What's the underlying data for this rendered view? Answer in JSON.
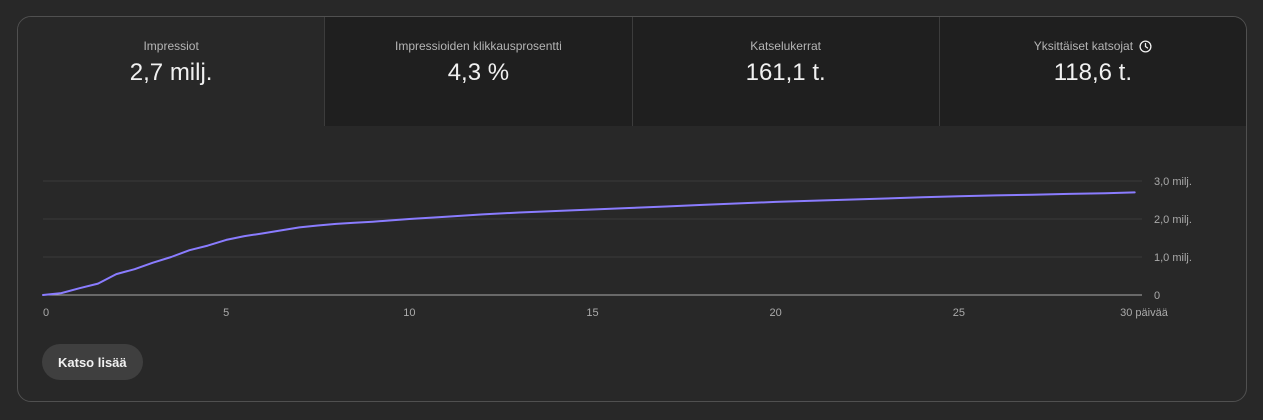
{
  "tabs": [
    {
      "label": "Impressiot",
      "value": "2,7 milj."
    },
    {
      "label": "Impressioiden klikkausprosentti",
      "value": "4,3 %"
    },
    {
      "label": "Katselukerrat",
      "value": "161,1 t."
    },
    {
      "label": "Yksittäiset katsojat",
      "value": "118,6 t."
    }
  ],
  "colors": {
    "line": "#8a7cff",
    "grid": "#3a3a3a",
    "baseline": "#aaaaaa"
  },
  "chart_data": {
    "type": "line",
    "title": "Impressiot",
    "xlabel": "",
    "ylabel": "",
    "xlim": [
      0,
      30
    ],
    "ylim": [
      0,
      3.0
    ],
    "x_ticks": [
      {
        "v": 0,
        "label": "0"
      },
      {
        "v": 5,
        "label": "5"
      },
      {
        "v": 10,
        "label": "10"
      },
      {
        "v": 15,
        "label": "15"
      },
      {
        "v": 20,
        "label": "20"
      },
      {
        "v": 25,
        "label": "25"
      },
      {
        "v": 30,
        "label": "30 päivää"
      }
    ],
    "y_ticks": [
      {
        "v": 0,
        "label": "0"
      },
      {
        "v": 1.0,
        "label": "1,0 milj."
      },
      {
        "v": 2.0,
        "label": "2,0 milj."
      },
      {
        "v": 3.0,
        "label": "3,0 milj."
      }
    ],
    "series": [
      {
        "name": "Impressiot (milj.)",
        "x": [
          0,
          0.5,
          1,
          1.5,
          2,
          2.5,
          3,
          3.5,
          4,
          4.5,
          5,
          5.5,
          6,
          6.5,
          7,
          7.5,
          8,
          8.5,
          9,
          10,
          11,
          12,
          13,
          14,
          15,
          16,
          17,
          18,
          19,
          20,
          21,
          22,
          23,
          24,
          25,
          26,
          27,
          28,
          29,
          29.8
        ],
        "values": [
          0,
          0.05,
          0.18,
          0.3,
          0.55,
          0.68,
          0.85,
          1.0,
          1.18,
          1.3,
          1.45,
          1.55,
          1.62,
          1.7,
          1.78,
          1.83,
          1.87,
          1.9,
          1.93,
          2.0,
          2.06,
          2.12,
          2.17,
          2.21,
          2.25,
          2.29,
          2.33,
          2.37,
          2.41,
          2.45,
          2.48,
          2.51,
          2.54,
          2.57,
          2.6,
          2.62,
          2.64,
          2.66,
          2.68,
          2.7
        ]
      }
    ]
  },
  "actions": {
    "more_label": "Katso lisää"
  }
}
